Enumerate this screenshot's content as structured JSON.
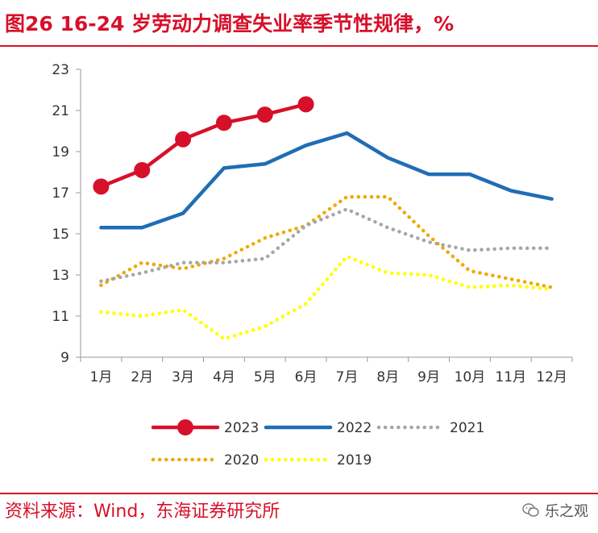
{
  "header": {
    "title": "图26  16-24 岁劳动力调查失业率季节性规律，%"
  },
  "footer": {
    "source": "资料来源：Wind，东海证券研究所",
    "watermark": "乐之观"
  },
  "chart_data": {
    "type": "line",
    "title": "图26  16-24 岁劳动力调查失业率季节性规律，%",
    "xlabel": "",
    "ylabel": "",
    "categories": [
      "1月",
      "2月",
      "3月",
      "4月",
      "5月",
      "6月",
      "7月",
      "8月",
      "9月",
      "10月",
      "11月",
      "12月"
    ],
    "ylim": [
      9,
      23
    ],
    "yticks": [
      9,
      11,
      13,
      15,
      17,
      19,
      21,
      23
    ],
    "grid": false,
    "legend_position": "bottom",
    "series": [
      {
        "name": "2023",
        "color": "#d7102a",
        "style": "solid-markers",
        "values": [
          17.3,
          18.1,
          19.6,
          20.4,
          20.8,
          21.3,
          null,
          null,
          null,
          null,
          null,
          null
        ]
      },
      {
        "name": "2022",
        "color": "#1f6db5",
        "style": "solid",
        "values": [
          15.3,
          15.3,
          16.0,
          18.2,
          18.4,
          19.3,
          19.9,
          18.7,
          17.9,
          17.9,
          17.1,
          16.7
        ]
      },
      {
        "name": "2021",
        "color": "#a6a6a6",
        "style": "dotted",
        "values": [
          12.7,
          13.1,
          13.6,
          13.6,
          13.8,
          15.4,
          16.2,
          15.3,
          14.6,
          14.2,
          14.3,
          14.3
        ]
      },
      {
        "name": "2020",
        "color": "#f0a800",
        "style": "dotted",
        "values": [
          12.5,
          13.6,
          13.3,
          13.8,
          14.8,
          15.4,
          16.8,
          16.8,
          14.9,
          13.2,
          12.8,
          12.4
        ]
      },
      {
        "name": "2019",
        "color": "#ffff00",
        "style": "dotted",
        "values": [
          11.2,
          11.0,
          11.3,
          9.9,
          10.5,
          11.6,
          13.9,
          13.1,
          13.0,
          12.4,
          12.5,
          12.3
        ]
      }
    ]
  }
}
